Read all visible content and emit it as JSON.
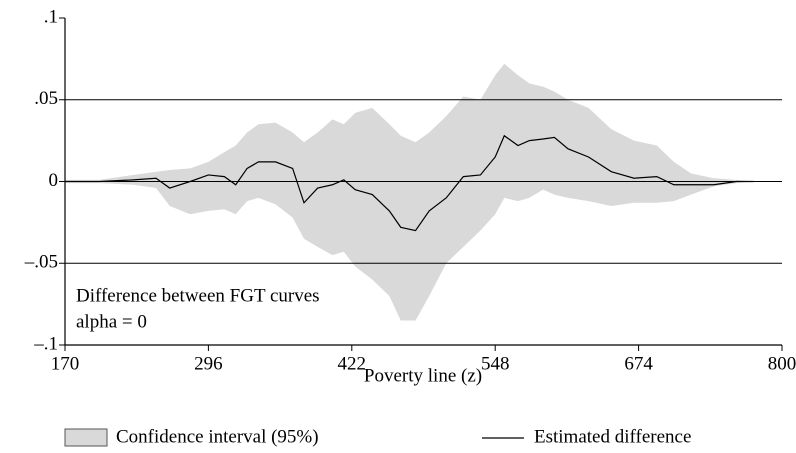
{
  "chart_data": {
    "type": "band_line",
    "x_label": "Poverty line (z)",
    "annotations": [
      "Difference between FGT curves",
      "alpha = 0"
    ],
    "x": [
      170,
      200,
      230,
      250,
      262,
      280,
      296,
      310,
      320,
      330,
      340,
      355,
      370,
      380,
      392,
      405,
      415,
      425,
      440,
      455,
      465,
      478,
      490,
      505,
      520,
      535,
      548,
      556,
      568,
      578,
      590,
      600,
      612,
      630,
      650,
      670,
      690,
      705,
      720,
      740,
      760,
      775
    ],
    "series": [
      {
        "name": "Confidence interval (95%)",
        "color": "#d9d9d9",
        "upper": [
          0.001,
          0.001,
          0.004,
          0.006,
          0.007,
          0.008,
          0.012,
          0.018,
          0.022,
          0.03,
          0.035,
          0.036,
          0.03,
          0.024,
          0.03,
          0.038,
          0.035,
          0.042,
          0.045,
          0.035,
          0.028,
          0.024,
          0.03,
          0.04,
          0.052,
          0.05,
          0.065,
          0.072,
          0.065,
          0.06,
          0.058,
          0.055,
          0.05,
          0.045,
          0.032,
          0.025,
          0.022,
          0.012,
          0.005,
          0.002,
          0.001,
          0
        ],
        "lower": [
          -0.001,
          -0.001,
          -0.002,
          -0.004,
          -0.015,
          -0.02,
          -0.018,
          -0.017,
          -0.02,
          -0.012,
          -0.01,
          -0.014,
          -0.022,
          -0.035,
          -0.04,
          -0.045,
          -0.043,
          -0.052,
          -0.06,
          -0.07,
          -0.085,
          -0.085,
          -0.07,
          -0.05,
          -0.04,
          -0.03,
          -0.02,
          -0.01,
          -0.012,
          -0.01,
          -0.005,
          -0.008,
          -0.01,
          -0.012,
          -0.015,
          -0.013,
          -0.013,
          -0.012,
          -0.008,
          -0.003,
          -0.001,
          0
        ]
      },
      {
        "name": "Estimated difference",
        "color": "#000000",
        "values": [
          0,
          0,
          0.001,
          0.002,
          -0.004,
          0,
          0.004,
          0.003,
          -0.002,
          0.008,
          0.012,
          0.012,
          0.008,
          -0.013,
          -0.004,
          -0.002,
          0.001,
          -0.005,
          -0.008,
          -0.018,
          -0.028,
          -0.03,
          -0.018,
          -0.01,
          0.003,
          0.004,
          0.015,
          0.028,
          0.022,
          0.025,
          0.026,
          0.027,
          0.02,
          0.015,
          0.006,
          0.002,
          0.003,
          -0.002,
          -0.002,
          -0.002,
          0,
          0
        ]
      }
    ],
    "xlim": [
      170,
      800
    ],
    "ylim": [
      -0.1,
      0.1
    ],
    "xticks": [
      170,
      296,
      422,
      548,
      674,
      800
    ],
    "yticks": [
      {
        "value": -0.1,
        "label": "–.1"
      },
      {
        "value": -0.05,
        "label": "–.05"
      },
      0,
      {
        "value": 0.05,
        "label": ".05"
      },
      {
        "value": 0.1,
        "label": ".1"
      }
    ],
    "grid": true
  }
}
